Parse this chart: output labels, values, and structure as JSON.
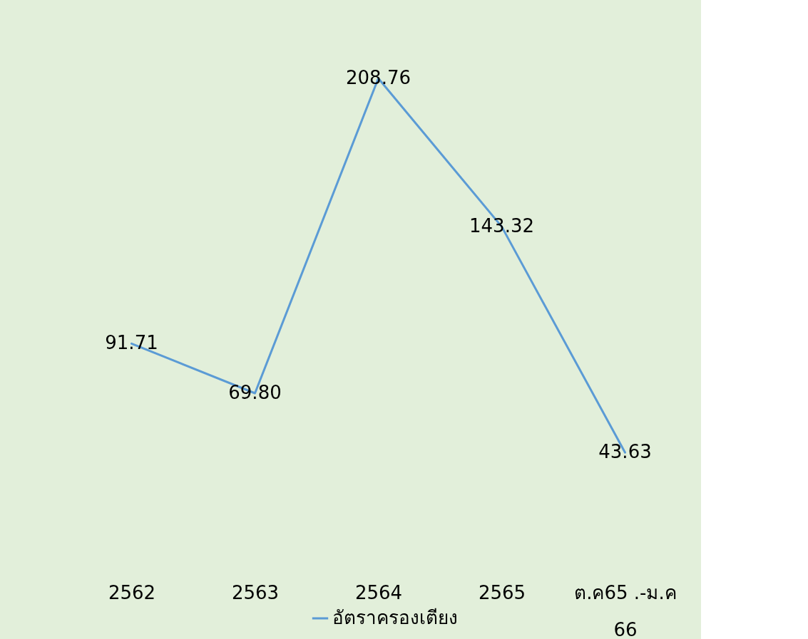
{
  "chart_data": {
    "type": "line",
    "categories": [
      "2562",
      "2563",
      "2564",
      "2565",
      "ต.ค65 .-ม.ค 66"
    ],
    "series": [
      {
        "name": "อัตราครองเตียง",
        "color": "#5b9bd5",
        "values": [
          91.71,
          69.8,
          208.76,
          143.32,
          43.63
        ],
        "value_labels": [
          "91.71",
          "69.80",
          "208.76",
          "143.32",
          "43.63"
        ]
      }
    ],
    "legend": "bottom",
    "grid": false,
    "marker": "none",
    "line_style": "solid"
  }
}
